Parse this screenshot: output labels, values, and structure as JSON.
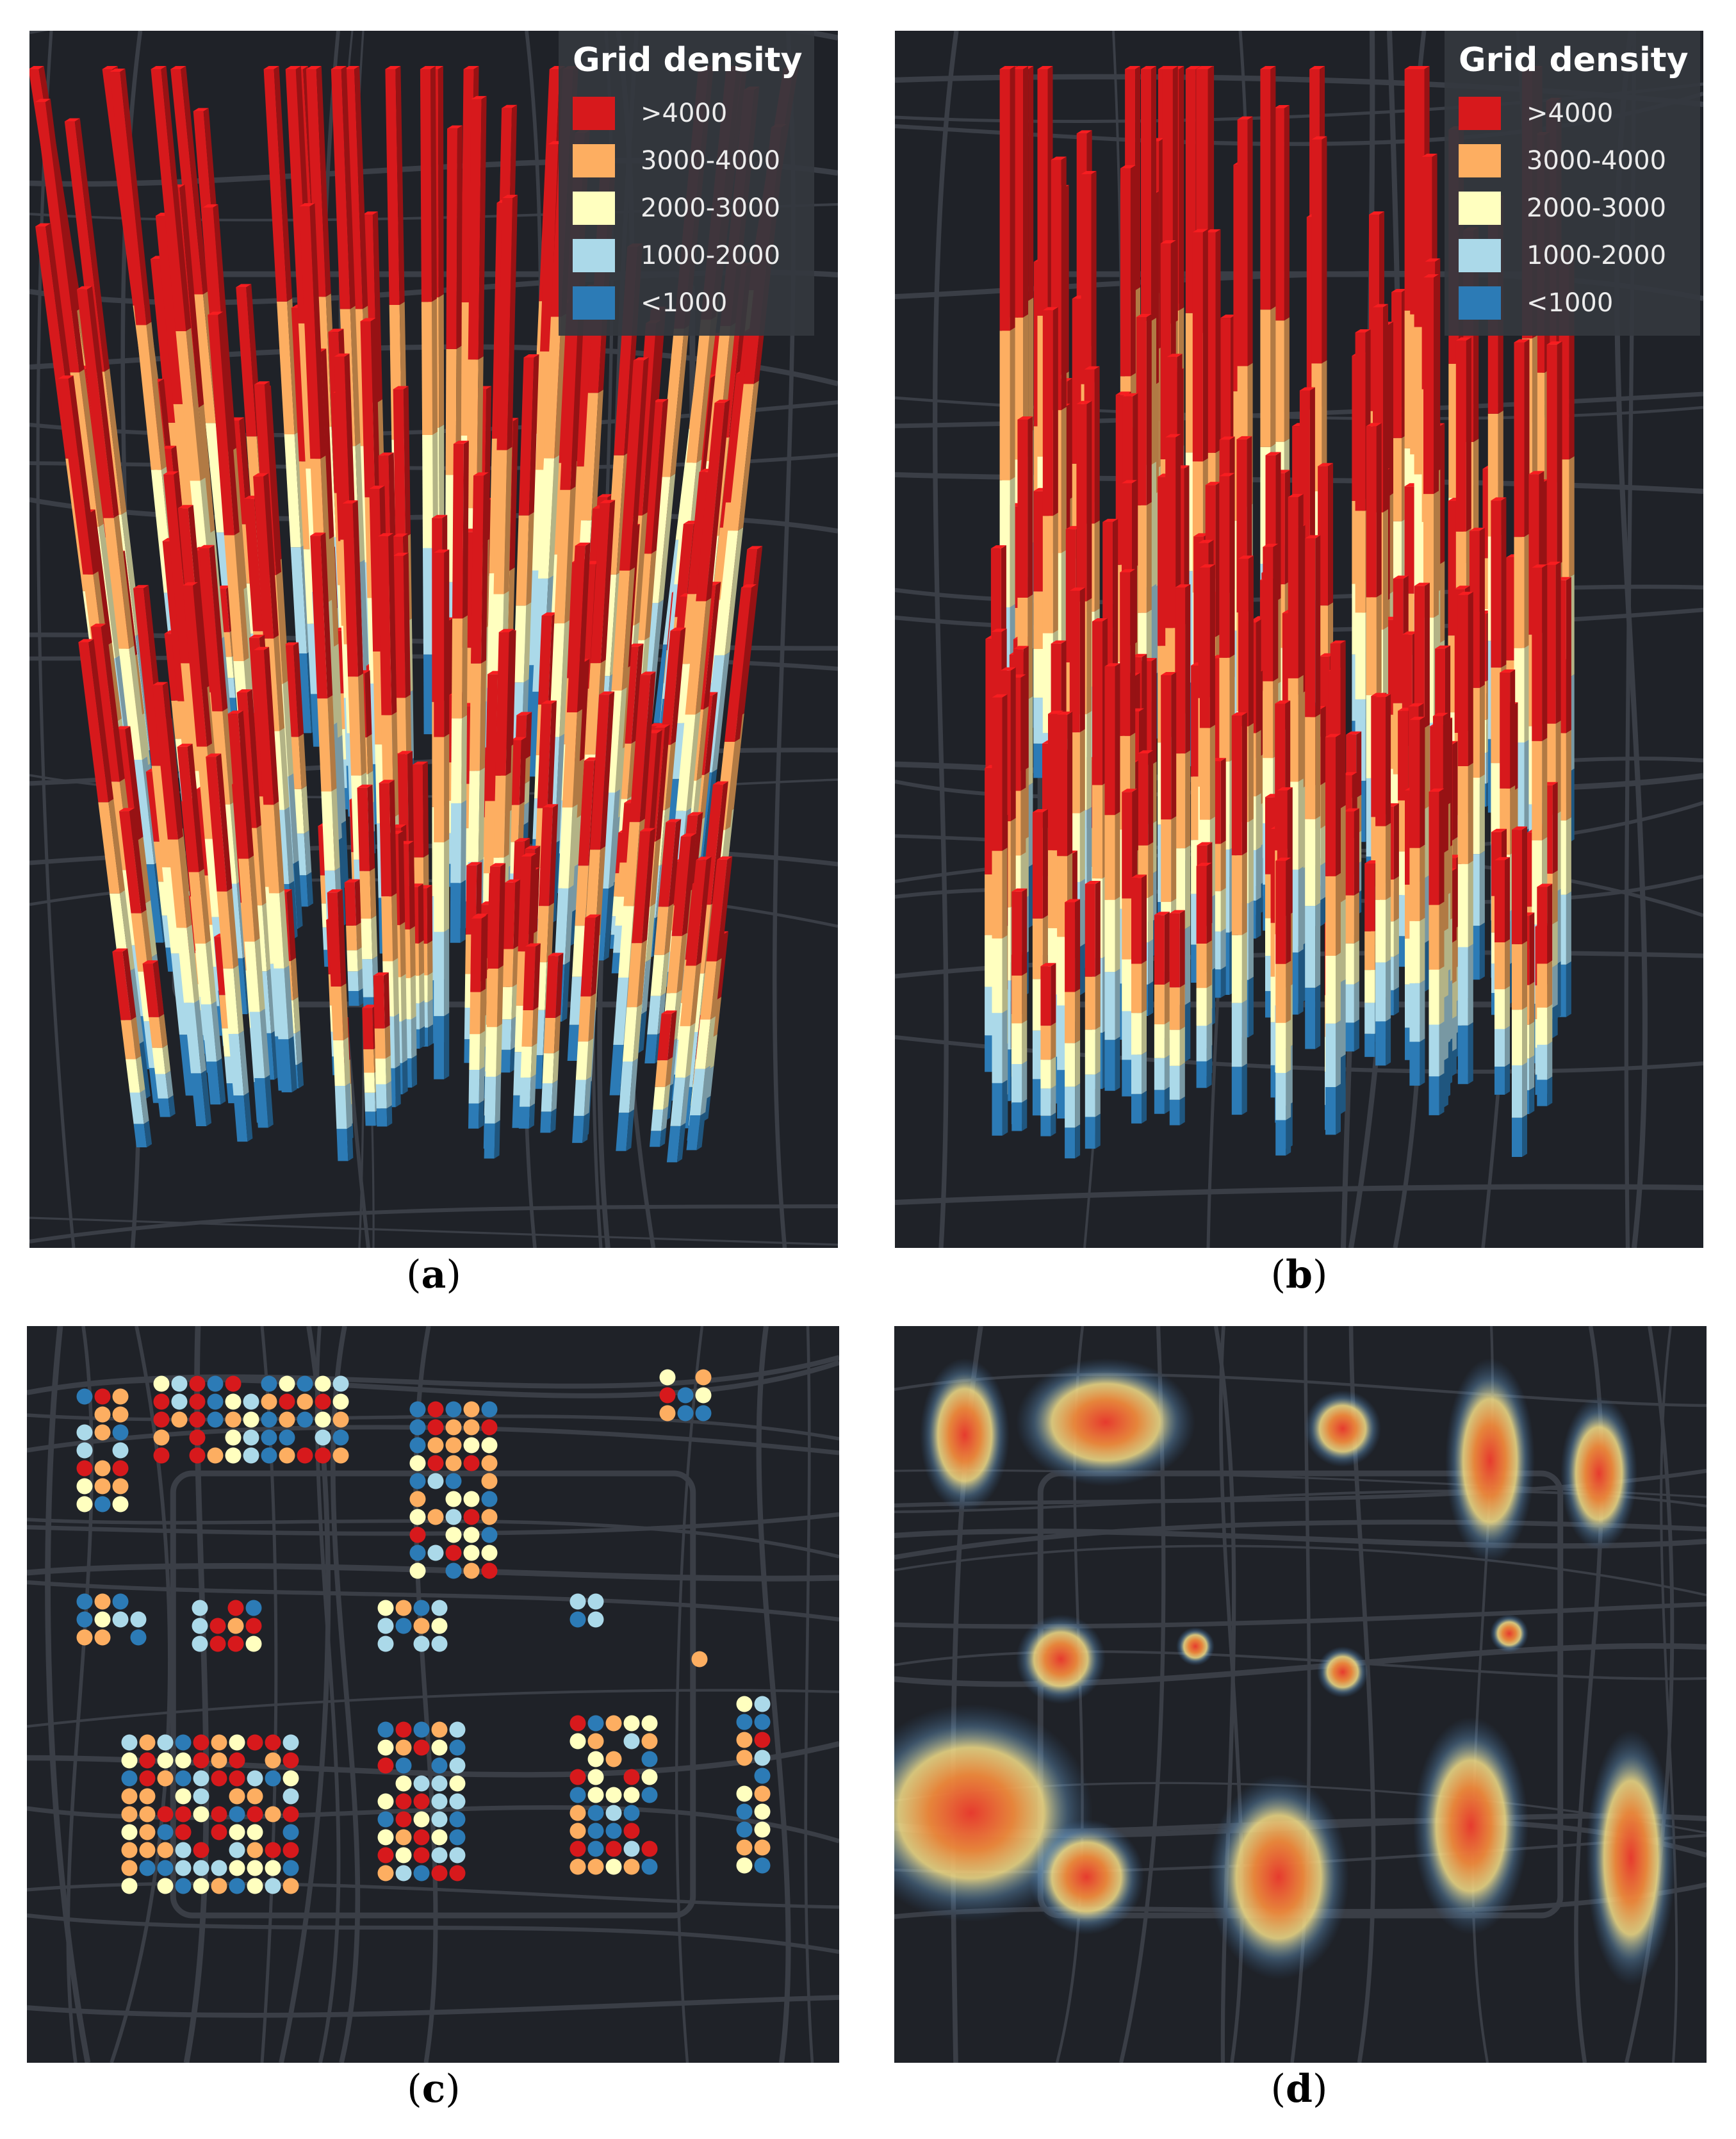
{
  "legend": {
    "title": "Grid density",
    "items": [
      {
        "label": ">4000",
        "color": "#d7191c"
      },
      {
        "label": "3000-4000",
        "color": "#fdae61"
      },
      {
        "label": "2000-3000",
        "color": "#ffffbf"
      },
      {
        "label": "1000-2000",
        "color": "#abd9e9"
      },
      {
        "label": "<1000",
        "color": "#2c7bb6"
      }
    ]
  },
  "captions": {
    "a": "a",
    "b": "b",
    "c": "c",
    "d": "d"
  },
  "colors": {
    "map_background": "#1f2228",
    "road": "#3a3e46"
  },
  "chart_data": [
    {
      "type": "other",
      "panel": "a",
      "description_kind": "3D extruded grid columns",
      "color_classes": [
        ">4000",
        "3000-4000",
        "2000-3000",
        "1000-2000",
        "<1000"
      ]
    },
    {
      "type": "other",
      "panel": "b",
      "description_kind": "3D extruded grid columns",
      "color_classes": [
        ">4000",
        "3000-4000",
        "2000-3000",
        "1000-2000",
        "<1000"
      ]
    },
    {
      "type": "scatter",
      "panel": "c",
      "description_kind": "grid dot map",
      "color_classes": [
        ">4000",
        "3000-4000",
        "2000-3000",
        "1000-2000",
        "<1000"
      ]
    },
    {
      "type": "heatmap",
      "panel": "d",
      "description_kind": "kernel density heat map",
      "hotspots": 14
    }
  ]
}
